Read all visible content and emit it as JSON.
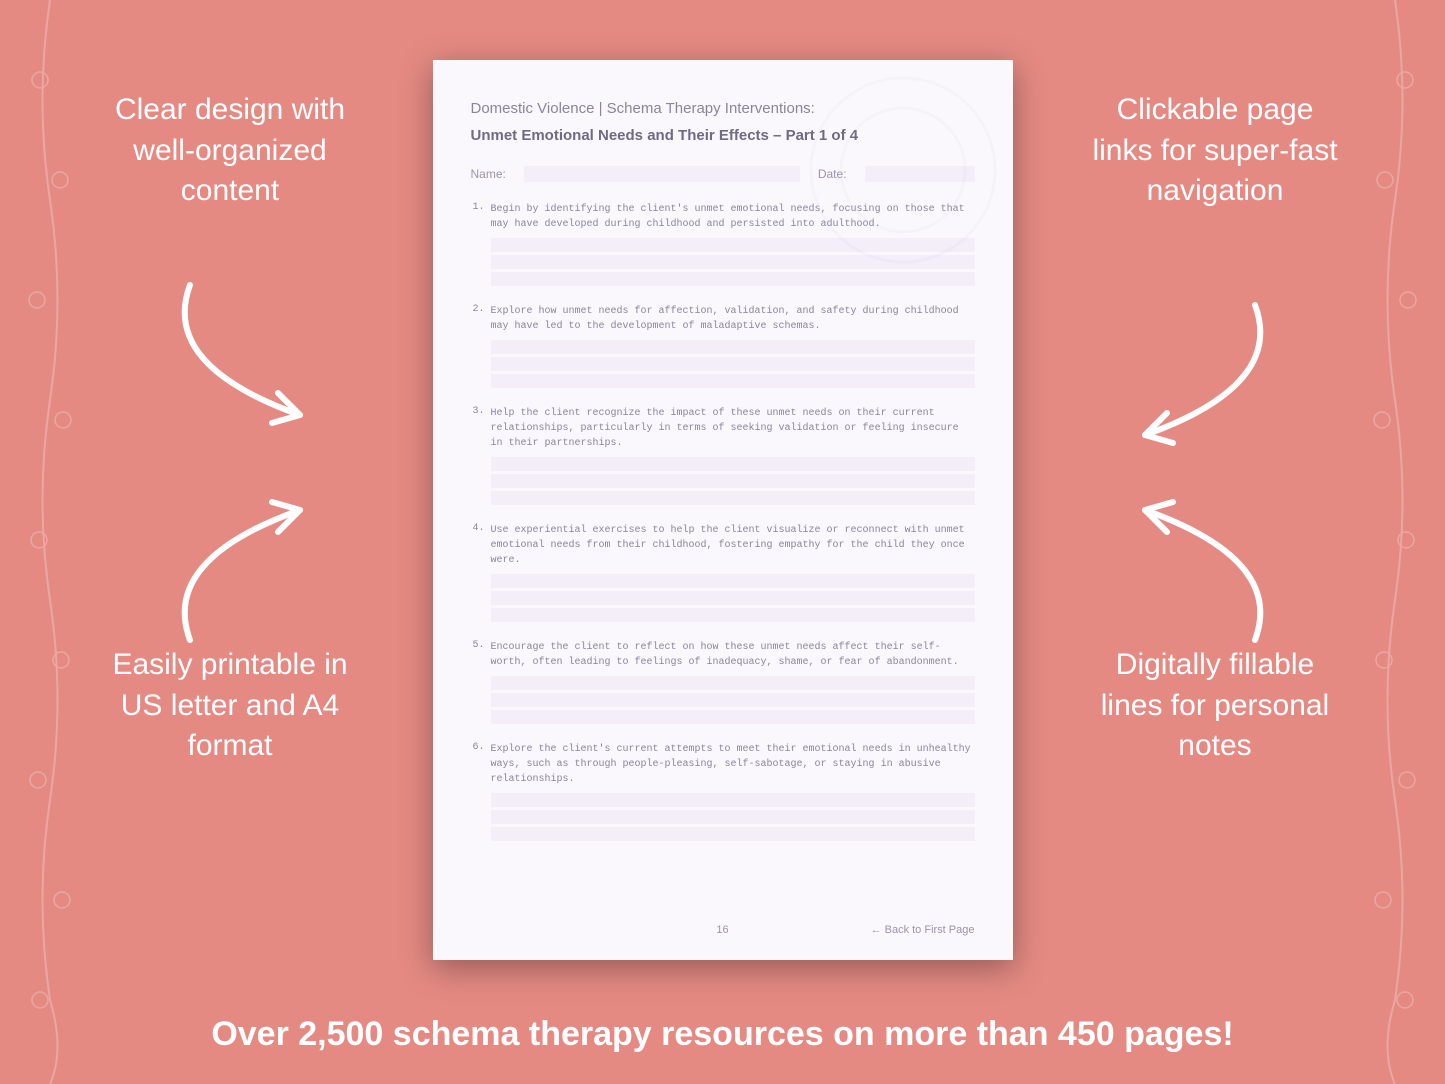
{
  "background_color": "#e48a83",
  "text_color": "#ffffff",
  "callouts": {
    "top_left": "Clear design with well-organized content",
    "top_right": "Clickable page links for super-fast navigation",
    "bottom_left": "Easily printable in US letter and A4 format",
    "bottom_right": "Digitally fillable lines for personal notes"
  },
  "footer_banner": "Over 2,500 schema therapy resources on more than 450 pages!",
  "document": {
    "title_line1": "Domestic Violence | Schema Therapy Interventions:",
    "title_line2": "Unmet Emotional Needs and Their Effects  – Part 1 of 4",
    "name_label": "Name:",
    "date_label": "Date:",
    "items": [
      {
        "num": "1.",
        "text": "Begin by identifying the client's unmet emotional needs, focusing on those that may have developed during childhood and persisted into adulthood."
      },
      {
        "num": "2.",
        "text": "Explore how unmet needs for affection, validation, and safety during childhood may have led to the development of maladaptive schemas."
      },
      {
        "num": "3.",
        "text": "Help the client recognize the impact of these unmet needs on their current relationships, particularly in terms of seeking validation or feeling insecure in their partnerships."
      },
      {
        "num": "4.",
        "text": "Use experiential exercises to help the client visualize or reconnect with unmet emotional needs from their childhood, fostering empathy for the child they once were."
      },
      {
        "num": "5.",
        "text": "Encourage the client to reflect on how these unmet needs affect their self-worth, often leading to feelings of inadequacy, shame, or fear of abandonment."
      },
      {
        "num": "6.",
        "text": "Explore the client's current attempts to meet their emotional needs in unhealthy ways, such as through people-pleasing, self-sabotage, or staying in abusive relationships."
      }
    ],
    "page_number": "16",
    "back_link": "← Back to First Page",
    "fill_line_color": "#f3eef8",
    "page_bg": "#fbf8fd",
    "heading_color": "#8a8599",
    "subheading_color": "#706a82",
    "body_text_color": "#8a8599",
    "lines_per_item": 3
  },
  "style": {
    "callout_fontsize": 30,
    "banner_fontsize": 34,
    "arrow_stroke": "#ffffff",
    "arrow_width": 6
  }
}
